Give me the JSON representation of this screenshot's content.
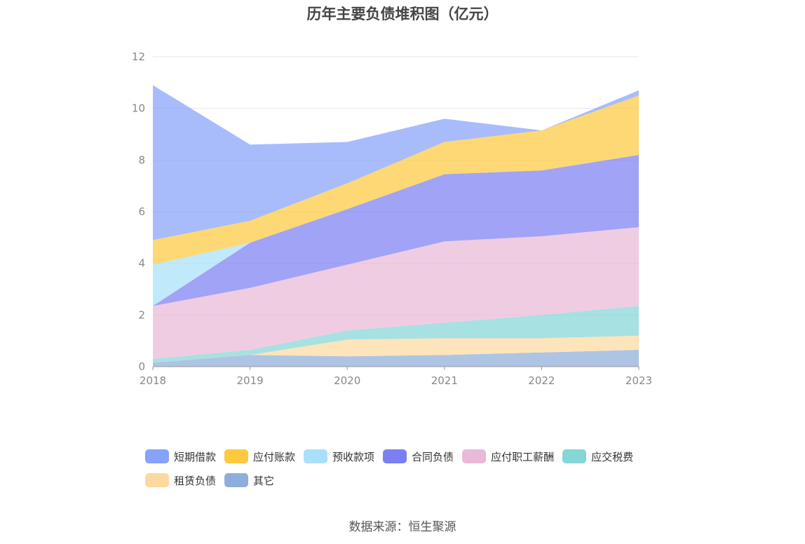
{
  "page": {
    "title": "历年主要负债堆积图（亿元）",
    "source": "数据来源：恒生聚源"
  },
  "chart_data": {
    "type": "area",
    "stacked": true,
    "title": "历年主要负债堆积图（亿元）",
    "x": [
      "2018",
      "2019",
      "2020",
      "2021",
      "2022",
      "2023"
    ],
    "ylim": [
      0,
      12
    ],
    "yticks": [
      0,
      2,
      4,
      6,
      8,
      10,
      12
    ],
    "grid": true,
    "legend_position": "bottom",
    "series": [
      {
        "name": "其它",
        "color": "#8fadda",
        "values": [
          0.15,
          0.45,
          0.4,
          0.45,
          0.55,
          0.65
        ]
      },
      {
        "name": "租赁负债",
        "color": "#fdd9a0",
        "values": [
          0.0,
          0.0,
          0.65,
          0.65,
          0.55,
          0.55
        ]
      },
      {
        "name": "应交税费",
        "color": "#85d6d6",
        "values": [
          0.15,
          0.2,
          0.35,
          0.6,
          0.9,
          1.15
        ]
      },
      {
        "name": "应付职工薪酬",
        "color": "#eab8d8",
        "values": [
          2.05,
          2.4,
          2.55,
          3.15,
          3.05,
          3.05
        ]
      },
      {
        "name": "合同负债",
        "color": "#7b7ff2",
        "values": [
          0.0,
          1.75,
          2.15,
          2.6,
          2.55,
          2.8
        ]
      },
      {
        "name": "预收款项",
        "color": "#a8e0fb",
        "values": [
          1.6,
          0.0,
          0.0,
          0.0,
          0.0,
          0.0
        ]
      },
      {
        "name": "应付账款",
        "color": "#fec93e",
        "values": [
          0.95,
          0.85,
          1.0,
          1.25,
          1.55,
          2.3
        ]
      },
      {
        "name": "短期借款",
        "color": "#87a2fb",
        "values": [
          6.0,
          2.95,
          1.6,
          0.9,
          0.0,
          0.2
        ]
      }
    ],
    "legend": [
      "短期借款",
      "应付账款",
      "预收款项",
      "合同负债",
      "应付职工薪酬",
      "应交税费",
      "租赁负债",
      "其它"
    ]
  }
}
